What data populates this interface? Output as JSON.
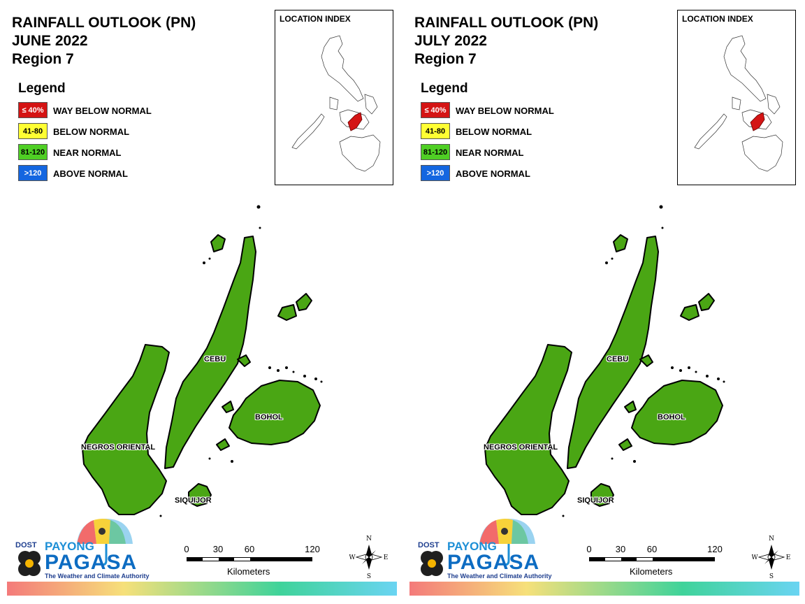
{
  "colors": {
    "land": "#4aa614",
    "border": "#000000",
    "way_below_normal": "#d41414",
    "below_normal": "#ffff33",
    "near_normal": "#4fcf24",
    "above_normal": "#1466e0"
  },
  "panels": [
    {
      "title": "RAINFALL OUTLOOK (PN)",
      "month": "JUNE 2022",
      "region": "Region 7",
      "legend_heading": "Legend",
      "legend": [
        {
          "swatch": "≤ 40%",
          "label": "WAY BELOW NORMAL",
          "color": "#d41414",
          "text_color": "#ffffff"
        },
        {
          "swatch": "41-80",
          "label": "BELOW NORMAL",
          "color": "#ffff33",
          "text_color": "#000000"
        },
        {
          "swatch": "81-120",
          "label": "NEAR NORMAL",
          "color": "#4fcf24",
          "text_color": "#000000"
        },
        {
          "swatch": ">120",
          "label": "ABOVE NORMAL",
          "color": "#1466e0",
          "text_color": "#ffffff"
        }
      ],
      "location_index": "LOCATION INDEX",
      "places": [
        "CEBU",
        "BOHOL",
        "NEGROS ORIENTAL",
        "SIQUIJOR"
      ],
      "rainfall_category": "NEAR NORMAL",
      "scale_ticks": [
        "0",
        "30",
        "60",
        "120"
      ],
      "scale_unit": "Kilometers",
      "compass": {
        "n": "N",
        "s": "S",
        "e": "E",
        "w": "W"
      },
      "logo": {
        "dost": "DOST",
        "payong": "PAYONG",
        "pagasa": "PAGASA",
        "tagline": "The Weather and Climate Authority"
      }
    },
    {
      "title": "RAINFALL OUTLOOK (PN)",
      "month": "JULY 2022",
      "region": "Region 7",
      "legend_heading": "Legend",
      "legend": [
        {
          "swatch": "≤ 40%",
          "label": "WAY BELOW NORMAL",
          "color": "#d41414",
          "text_color": "#ffffff"
        },
        {
          "swatch": "41-80",
          "label": "BELOW NORMAL",
          "color": "#ffff33",
          "text_color": "#000000"
        },
        {
          "swatch": "81-120",
          "label": "NEAR NORMAL",
          "color": "#4fcf24",
          "text_color": "#000000"
        },
        {
          "swatch": ">120",
          "label": "ABOVE NORMAL",
          "color": "#1466e0",
          "text_color": "#ffffff"
        }
      ],
      "location_index": "LOCATION INDEX",
      "places": [
        "CEBU",
        "BOHOL",
        "NEGROS ORIENTAL",
        "SIQUIJOR"
      ],
      "rainfall_category": "NEAR NORMAL",
      "scale_ticks": [
        "0",
        "30",
        "60",
        "120"
      ],
      "scale_unit": "Kilometers",
      "compass": {
        "n": "N",
        "s": "S",
        "e": "E",
        "w": "W"
      },
      "logo": {
        "dost": "DOST",
        "payong": "PAYONG",
        "pagasa": "PAGASA",
        "tagline": "The Weather and Climate Authority"
      }
    }
  ]
}
